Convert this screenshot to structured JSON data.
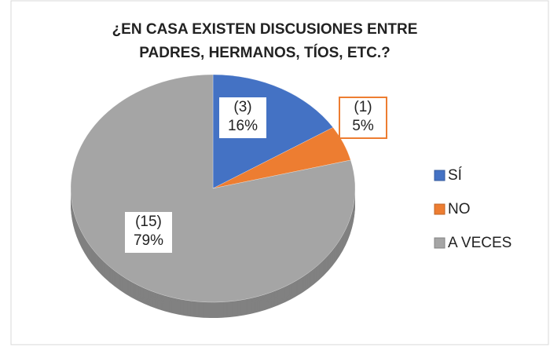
{
  "chart_data": {
    "type": "pie",
    "title": [
      "¿EN CASA EXISTEN DISCUSIONES ENTRE",
      "PADRES, HERMANOS, TÍOS, ETC.?"
    ],
    "categories": [
      "SÍ",
      "NO",
      "A VECES"
    ],
    "values": [
      16,
      5,
      79
    ],
    "value_labels": [
      "16%",
      "5%",
      "79%"
    ],
    "counts": [
      3,
      1,
      15
    ],
    "count_labels": [
      "(3)",
      "(1)",
      "(15)"
    ],
    "colors": [
      "#4472c4",
      "#ed7d31",
      "#a5a5a5"
    ],
    "legend": "right"
  }
}
